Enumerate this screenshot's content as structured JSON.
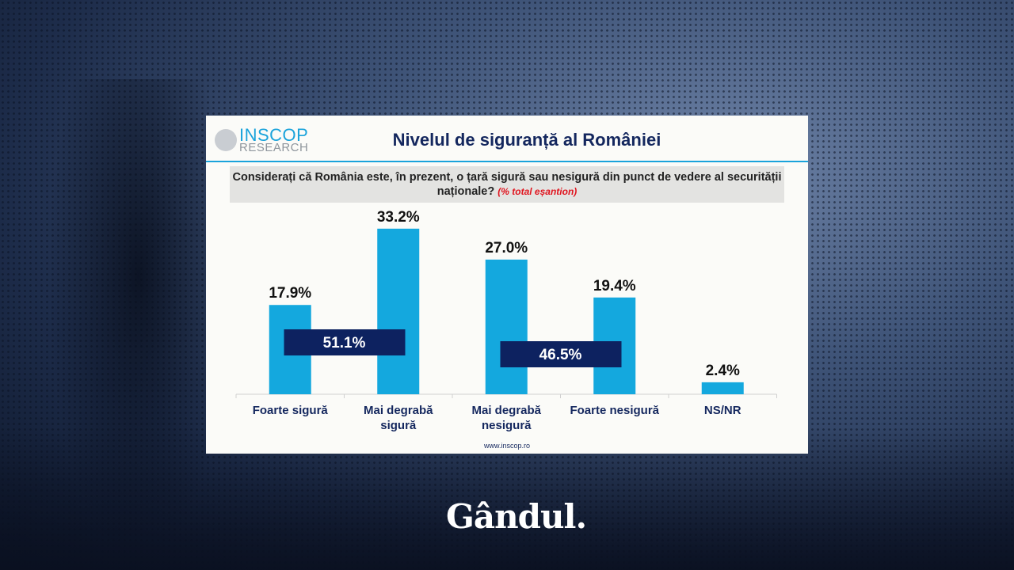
{
  "header": {
    "logo_main": "INSCOP",
    "logo_sub": "RESEARCH",
    "title": "Nivelul de siguranță al României"
  },
  "question": {
    "text": "Considerați că România este, în prezent, o țară sigură sau nesigură din punct de vedere al securității naționale?",
    "note": "(% total eșantion)"
  },
  "footer": "www.inscop.ro",
  "brand": "Gândul.",
  "colors": {
    "bar": "#14a8de",
    "subtotal_box": "#0d2260",
    "title": "#14275e",
    "note": "#e0141e"
  },
  "chart_data": {
    "type": "bar",
    "categories": [
      [
        "Foarte sigură"
      ],
      [
        "Mai degrabă",
        "sigură"
      ],
      [
        "Mai degrabă",
        "nesigură"
      ],
      [
        "Foarte nesigură"
      ],
      [
        "NS/NR"
      ]
    ],
    "values": [
      17.9,
      33.2,
      27.0,
      19.4,
      2.4
    ],
    "data_labels": [
      "17.9%",
      "33.2%",
      "27.0%",
      "19.4%",
      "2.4%"
    ],
    "subtotals": [
      {
        "label": "51.1%",
        "value": 51.1,
        "spans": [
          0,
          1
        ]
      },
      {
        "label": "46.5%",
        "value": 46.5,
        "spans": [
          2,
          3
        ]
      }
    ],
    "grid": false,
    "legend": "none"
  }
}
